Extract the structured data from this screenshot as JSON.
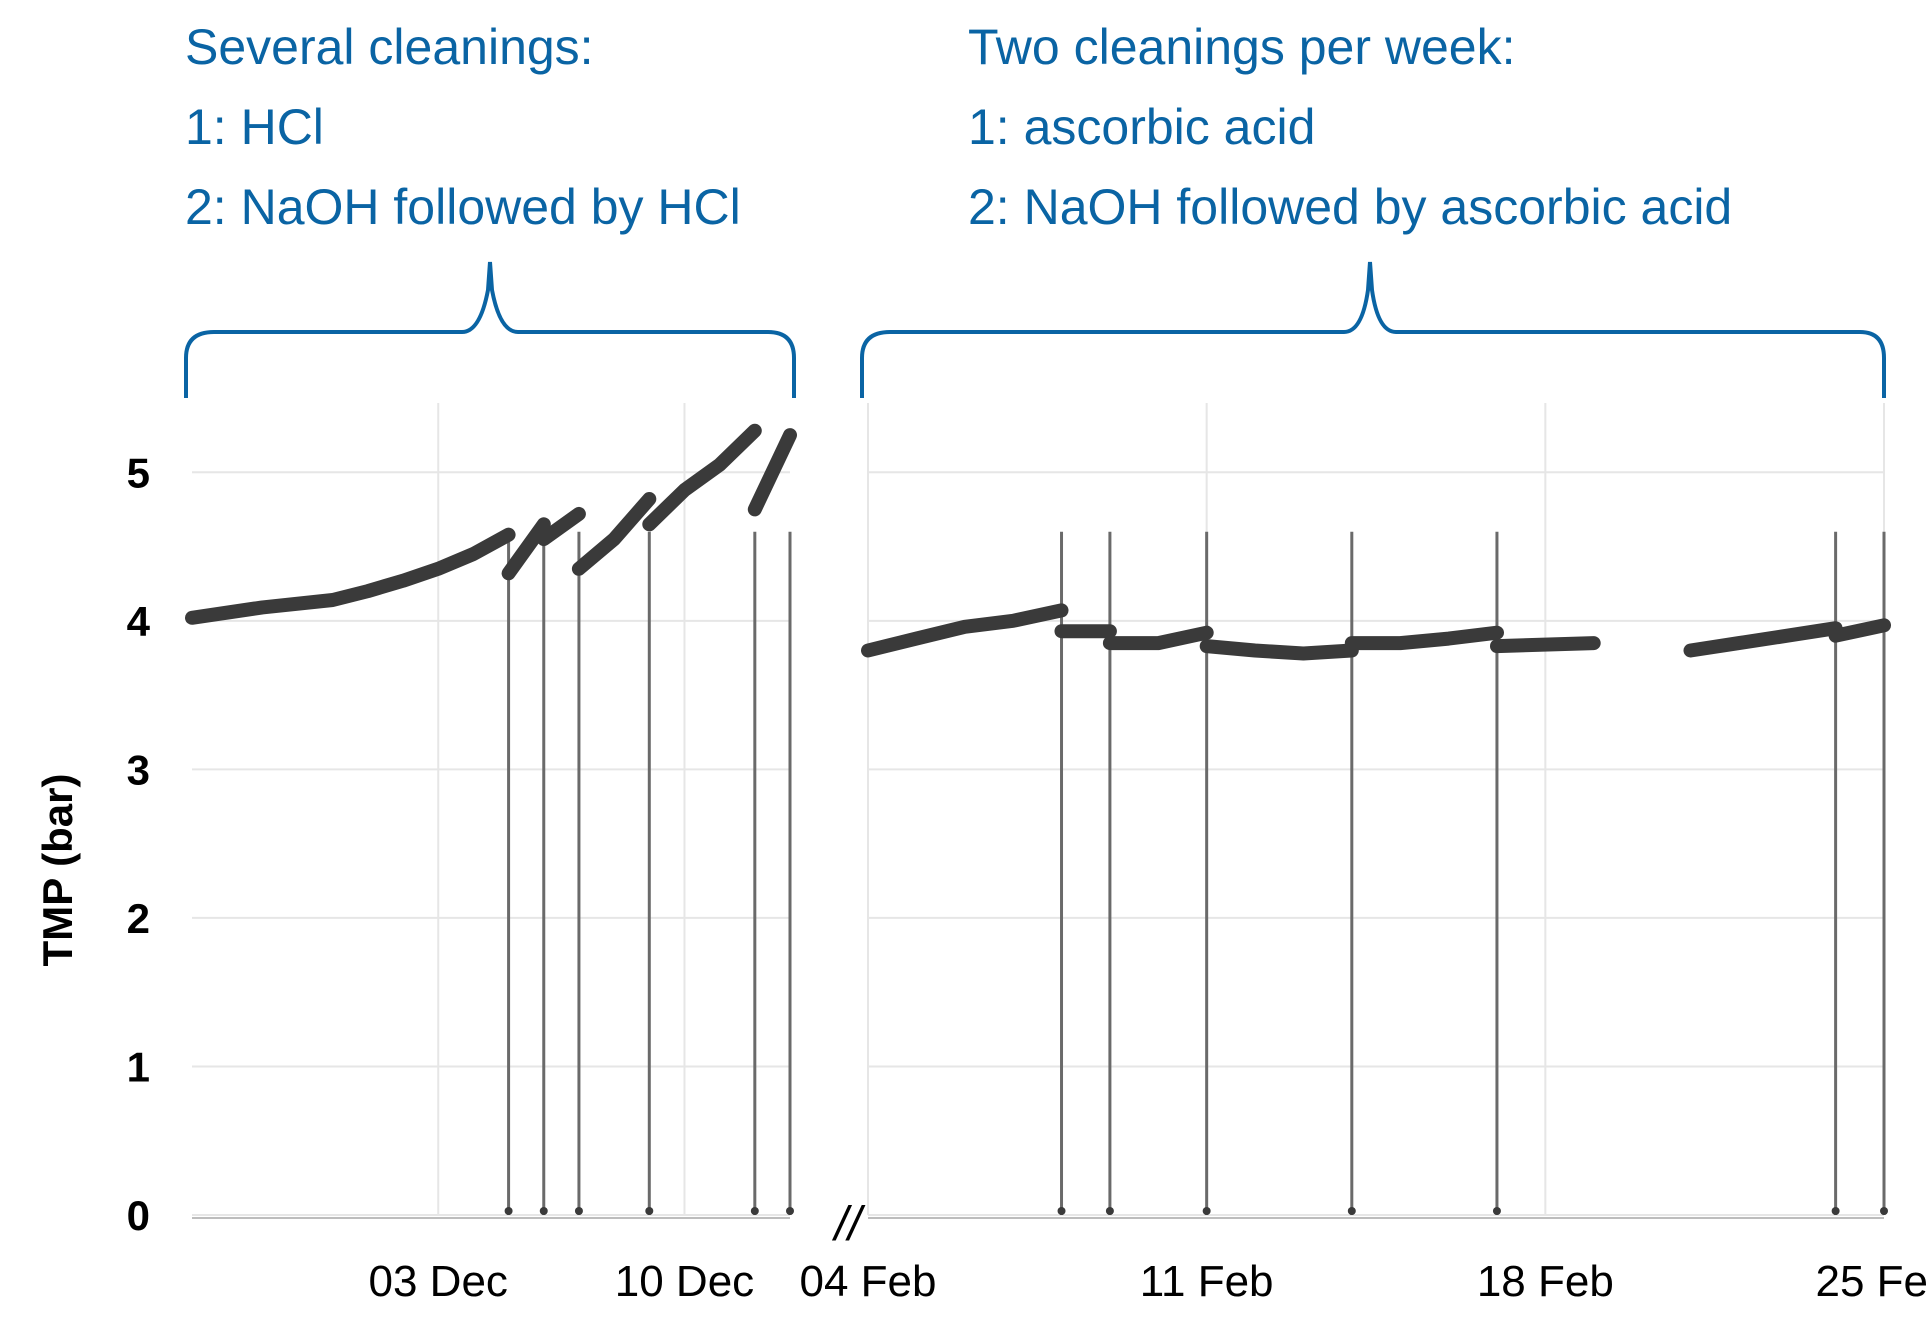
{
  "chart_data": {
    "type": "line",
    "ylabel": "TMP (bar)",
    "ylim": [
      0,
      5.5
    ],
    "y_ticks": [
      0,
      1,
      2,
      3,
      4,
      5
    ],
    "grid": true,
    "axis_break": "//",
    "colors": {
      "data": "#3a3a3a",
      "annotation": "#0a64a4",
      "grid": "#e6e6e6"
    },
    "panels": [
      {
        "name": "period-1",
        "annotation": [
          "Several cleanings:",
          "1: HCl",
          "2: NaOH followed by HCl"
        ],
        "xlim": [
          "2018-11-26",
          "2018-12-13"
        ],
        "x_ticks": [
          {
            "label": "03 Dec",
            "date": "2018-12-03"
          },
          {
            "label": "10 Dec",
            "date": "2018-12-10"
          }
        ],
        "segments": [
          {
            "x": [
              "2018-11-26",
              "2018-11-28",
              "2018-11-30",
              "2018-12-01",
              "2018-12-02",
              "2018-12-03",
              "2018-12-04",
              "2018-12-05"
            ],
            "y": [
              4.02,
              4.09,
              4.14,
              4.2,
              4.27,
              4.35,
              4.45,
              4.58
            ]
          },
          {
            "x": [
              "2018-12-05",
              "2018-12-06"
            ],
            "y": [
              4.32,
              4.65
            ]
          },
          {
            "x": [
              "2018-12-06",
              "2018-12-07"
            ],
            "y": [
              4.55,
              4.72
            ]
          },
          {
            "x": [
              "2018-12-07",
              "2018-12-08",
              "2018-12-09"
            ],
            "y": [
              4.35,
              4.55,
              4.82
            ]
          },
          {
            "x": [
              "2018-12-09",
              "2018-12-10",
              "2018-12-11",
              "2018-12-12"
            ],
            "y": [
              4.65,
              4.88,
              5.05,
              5.28
            ]
          },
          {
            "x": [
              "2018-12-12",
              "2018-12-13"
            ],
            "y": [
              4.75,
              5.25
            ]
          }
        ],
        "cleanings": [
          "2018-12-05",
          "2018-12-06",
          "2018-12-07",
          "2018-12-09",
          "2018-12-12",
          "2018-12-13"
        ]
      },
      {
        "name": "period-2",
        "annotation": [
          "Two cleanings per week:",
          "1: ascorbic acid",
          "2: NaOH followed by ascorbic acid"
        ],
        "xlim": [
          "2019-02-04",
          "2019-02-25"
        ],
        "x_ticks": [
          {
            "label": "04 Feb",
            "date": "2019-02-04"
          },
          {
            "label": "11 Feb",
            "date": "2019-02-11"
          },
          {
            "label": "18 Feb",
            "date": "2019-02-18"
          },
          {
            "label": "25 Feb",
            "date": "2019-02-25"
          }
        ],
        "segments": [
          {
            "x": [
              "2019-02-04",
              "2019-02-05",
              "2019-02-06",
              "2019-02-07",
              "2019-02-08"
            ],
            "y": [
              3.8,
              3.88,
              3.96,
              4.0,
              4.07
            ]
          },
          {
            "x": [
              "2019-02-08",
              "2019-02-09"
            ],
            "y": [
              3.93,
              3.93
            ]
          },
          {
            "x": [
              "2019-02-09",
              "2019-02-10",
              "2019-02-11"
            ],
            "y": [
              3.85,
              3.85,
              3.92
            ]
          },
          {
            "x": [
              "2019-02-11",
              "2019-02-12",
              "2019-02-13",
              "2019-02-14"
            ],
            "y": [
              3.83,
              3.8,
              3.78,
              3.8
            ]
          },
          {
            "x": [
              "2019-02-14",
              "2019-02-15",
              "2019-02-16",
              "2019-02-17"
            ],
            "y": [
              3.85,
              3.85,
              3.88,
              3.92
            ]
          },
          {
            "x": [
              "2019-02-17",
              "2019-02-19"
            ],
            "y": [
              3.83,
              3.85
            ]
          },
          {
            "x": [
              "2019-02-21",
              "2019-02-22",
              "2019-02-23",
              "2019-02-24"
            ],
            "y": [
              3.8,
              3.85,
              3.9,
              3.95
            ]
          },
          {
            "x": [
              "2019-02-24",
              "2019-02-25"
            ],
            "y": [
              3.9,
              3.97
            ]
          }
        ],
        "cleanings": [
          "2019-02-08",
          "2019-02-09",
          "2019-02-11",
          "2019-02-14",
          "2019-02-17",
          "2019-02-24",
          "2019-02-25"
        ]
      }
    ]
  }
}
